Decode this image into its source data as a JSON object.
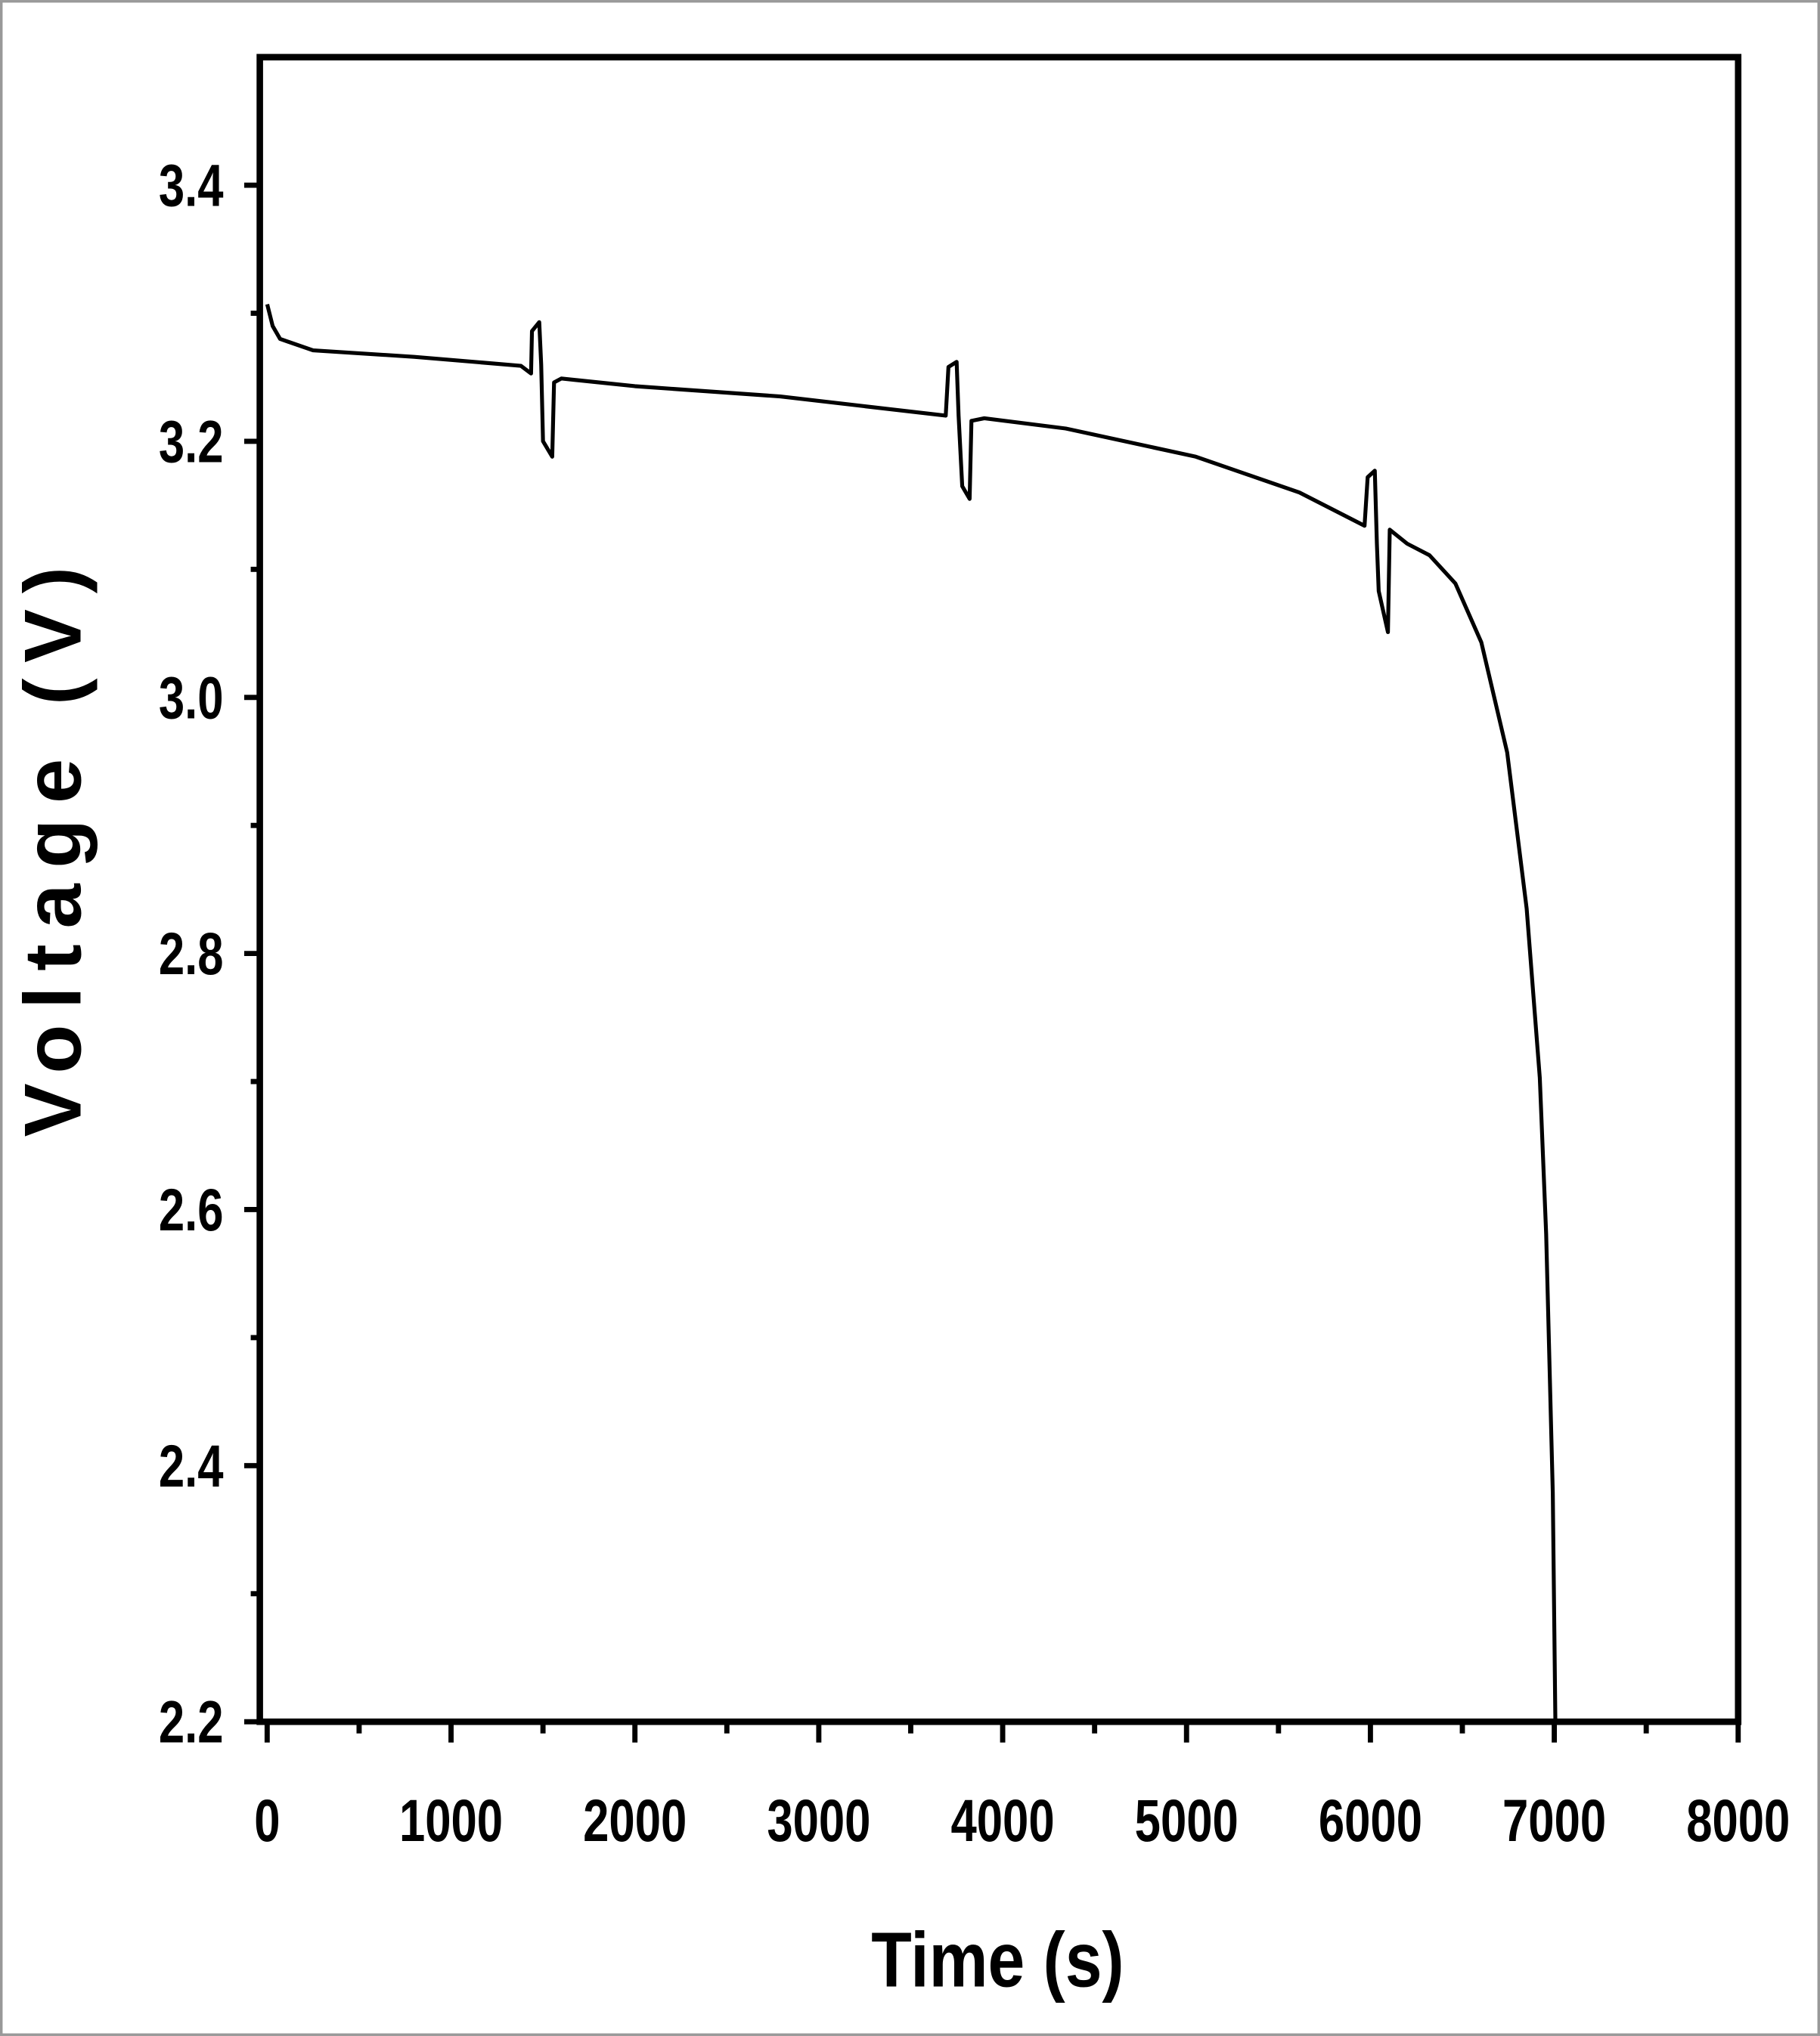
{
  "chart_data": {
    "type": "line",
    "title": "",
    "xlabel": "Time (s)",
    "ylabel": "Voltage (V)",
    "xlim": [
      -40,
      8000
    ],
    "ylim": [
      2.2,
      3.5
    ],
    "xticks": [
      0,
      1000,
      2000,
      3000,
      4000,
      5000,
      6000,
      7000,
      8000
    ],
    "xtick_labels": [
      "0",
      "1000",
      "2000",
      "3000",
      "4000",
      "5000",
      "6000",
      "7000",
      "8000"
    ],
    "yticks": [
      2.2,
      2.4,
      2.6,
      2.8,
      3.0,
      3.2,
      3.4
    ],
    "ytick_labels": [
      "2.2",
      "2.4",
      "2.6",
      "2.8",
      "3.0",
      "3.2",
      "3.4"
    ],
    "grid": false,
    "legend": "none",
    "line_color": "#000000",
    "series": [
      {
        "x": [
          0,
          30,
          70,
          250,
          800,
          1380,
          1435,
          1440,
          1480,
          1490,
          1500,
          1550,
          1560,
          1600,
          2000,
          2790,
          3690,
          3705,
          3750,
          3760,
          3780,
          3820,
          3830,
          3900,
          4343,
          5050,
          5614,
          5968,
          5985,
          6024,
          6035,
          6045,
          6095,
          6105,
          6200,
          6321,
          6462,
          6603,
          6744,
          6850,
          6921,
          6956,
          6992,
          7006
        ],
        "y": [
          3.307,
          3.29,
          3.28,
          3.271,
          3.266,
          3.259,
          3.253,
          3.286,
          3.293,
          3.26,
          3.2,
          3.188,
          3.246,
          3.249,
          3.243,
          3.235,
          3.22,
          3.258,
          3.262,
          3.22,
          3.165,
          3.155,
          3.216,
          3.218,
          3.21,
          3.188,
          3.16,
          3.134,
          3.172,
          3.177,
          3.12,
          3.083,
          3.051,
          3.131,
          3.12,
          3.111,
          3.089,
          3.043,
          2.957,
          2.835,
          2.703,
          2.581,
          2.379,
          2.2
        ]
      }
    ]
  }
}
